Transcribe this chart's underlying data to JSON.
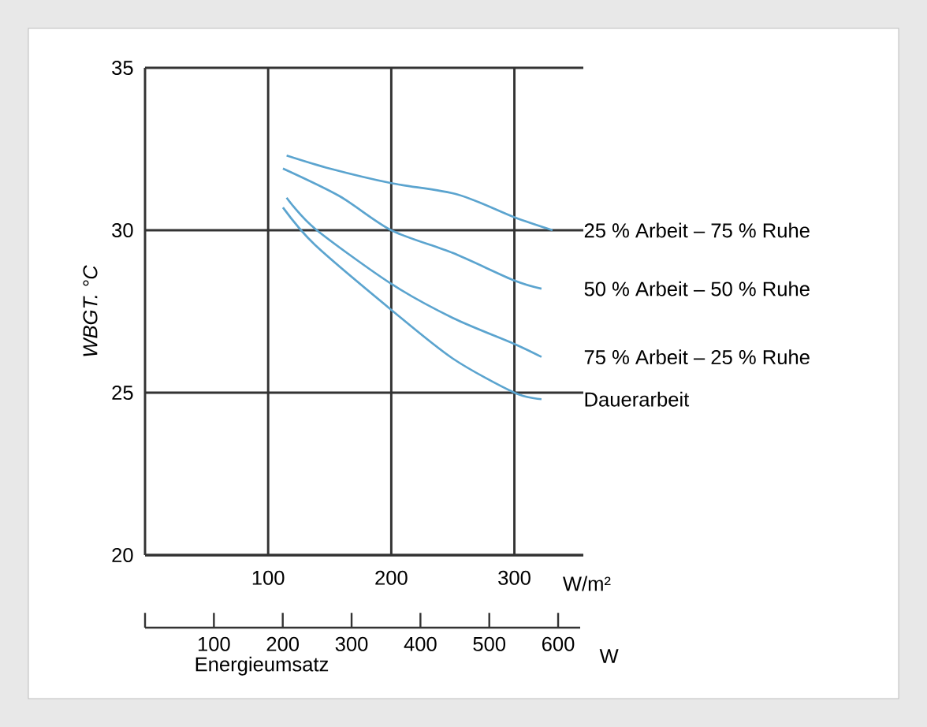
{
  "chart_data": {
    "type": "line",
    "ylabel": "WBGT. °C",
    "xlabel": "W/m²",
    "x2label": "Energieumsatz",
    "xlim": [
      0,
      356
    ],
    "xticks": [
      100,
      200,
      300
    ],
    "ylim": [
      20,
      35
    ],
    "yticks": [
      20,
      25,
      30,
      35
    ],
    "x2lim": [
      0,
      632
    ],
    "x2ticks": [
      {
        "value": 0,
        "label": null
      },
      100,
      200,
      300,
      400,
      500,
      600
    ],
    "grid": true,
    "legend": false,
    "annotations": [
      "W"
    ],
    "series": [
      {
        "name": "25 % Arbeit – 75 % Ruhe",
        "color": "#5ba4cf",
        "x": [
          115,
          150,
          200,
          254,
          300,
          331
        ],
        "values": [
          32.3,
          31.9,
          31.45,
          31.1,
          30.4,
          30.0
        ]
      },
      {
        "name": "50 % Arbeit – 50 % Ruhe",
        "color": "#5ba4cf",
        "x": [
          112,
          158,
          200,
          250,
          300,
          322
        ],
        "values": [
          31.9,
          31.05,
          30.0,
          29.3,
          28.45,
          28.2
        ]
      },
      {
        "name": "75 % Arbeit – 25 % Ruhe",
        "color": "#5ba4cf",
        "x": [
          115,
          138,
          200,
          250,
          300,
          322
        ],
        "values": [
          31.0,
          30.05,
          28.35,
          27.3,
          26.5,
          26.1
        ]
      },
      {
        "name": "Dauerarbeit",
        "color": "#5ba4cf",
        "x": [
          112,
          138,
          200,
          250,
          300,
          322
        ],
        "values": [
          30.7,
          29.55,
          27.55,
          26.05,
          25.0,
          24.8
        ]
      }
    ]
  }
}
